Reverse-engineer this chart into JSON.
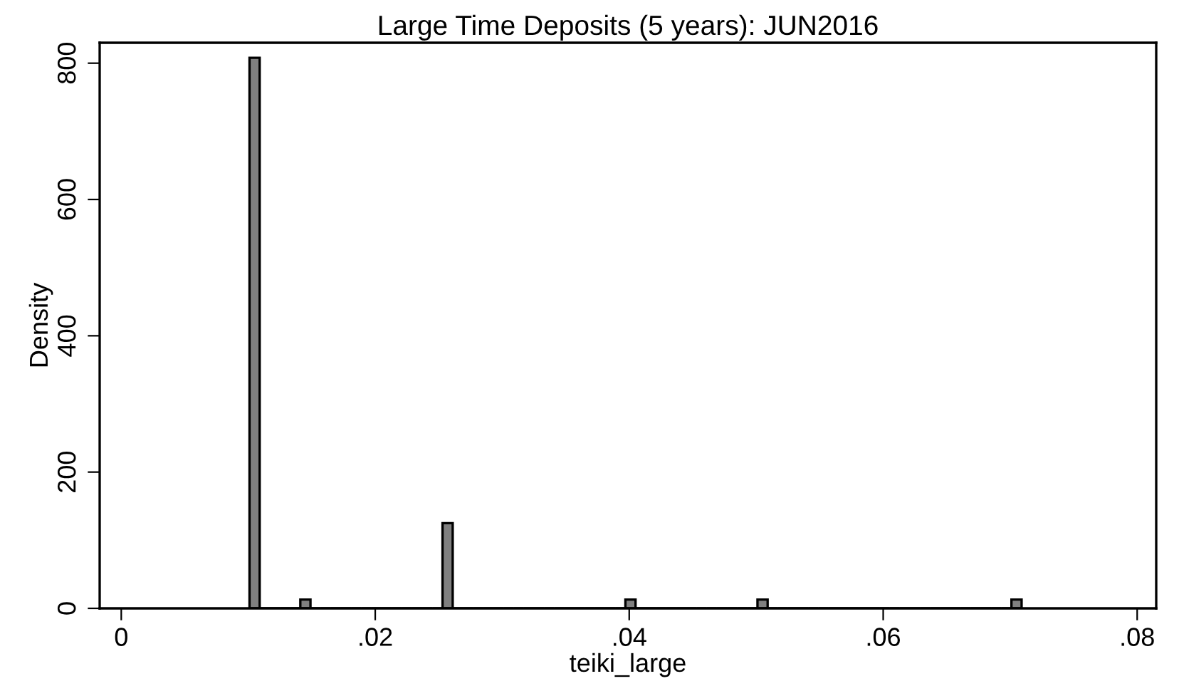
{
  "chart_data": {
    "type": "histogram",
    "title": "Large Time Deposits (5 years): JUN2016",
    "xlabel": "teiki_large",
    "ylabel": "Density",
    "bins": [
      0.0101,
      0.0109,
      0.0117,
      0.0125,
      0.0133,
      0.0141,
      0.0149,
      0.0157,
      0.0165,
      0.0173,
      0.0181,
      0.0189,
      0.0197,
      0.0205,
      0.0213,
      0.0221,
      0.0229,
      0.0237,
      0.0245,
      0.0253,
      0.0261,
      0.0269,
      0.0277,
      0.0285,
      0.0293,
      0.0301,
      0.0309,
      0.0317,
      0.0325,
      0.0333,
      0.0341,
      0.0349,
      0.0357,
      0.0365,
      0.0373,
      0.0381,
      0.0389,
      0.0397,
      0.0405,
      0.0413,
      0.0421,
      0.0429,
      0.0437,
      0.0445,
      0.0453,
      0.0461,
      0.0469,
      0.0477,
      0.0485,
      0.0493,
      0.0501,
      0.0509,
      0.0517,
      0.0525,
      0.0533,
      0.0541,
      0.0549,
      0.0557,
      0.0565,
      0.0573,
      0.0581,
      0.0589,
      0.0597,
      0.0605,
      0.0613,
      0.0621,
      0.0629,
      0.0637,
      0.0645,
      0.0653,
      0.0661,
      0.0669,
      0.0677,
      0.0685,
      0.0693,
      0.0701,
      0.0709
    ],
    "values": [
      808,
      0,
      0,
      0,
      0,
      13,
      0,
      0,
      0,
      0,
      0,
      0,
      0,
      0,
      0,
      0,
      0,
      0,
      0,
      125,
      0,
      0,
      0,
      0,
      0,
      0,
      0,
      0,
      0,
      0,
      0,
      0,
      0,
      0,
      0,
      0,
      0,
      13,
      0,
      0,
      0,
      0,
      0,
      0,
      0,
      0,
      0,
      0,
      0,
      0,
      13,
      0,
      0,
      0,
      0,
      0,
      0,
      0,
      0,
      0,
      0,
      0,
      0,
      0,
      0,
      0,
      0,
      0,
      0,
      0,
      0,
      0,
      0,
      0,
      0,
      13
    ],
    "color": "#808080",
    "xlim": [
      -0.0017,
      0.0815
    ],
    "xticks": [
      {
        "value": 0,
        "label": "0"
      },
      {
        "value": 0.02,
        "label": ".02"
      },
      {
        "value": 0.04,
        "label": ".04"
      },
      {
        "value": 0.06,
        "label": ".06"
      },
      {
        "value": 0.08,
        "label": ".08"
      }
    ],
    "ylim": [
      0,
      830
    ],
    "yticks": [
      0,
      200,
      400,
      600,
      800
    ],
    "grid": false,
    "legend": false
  }
}
